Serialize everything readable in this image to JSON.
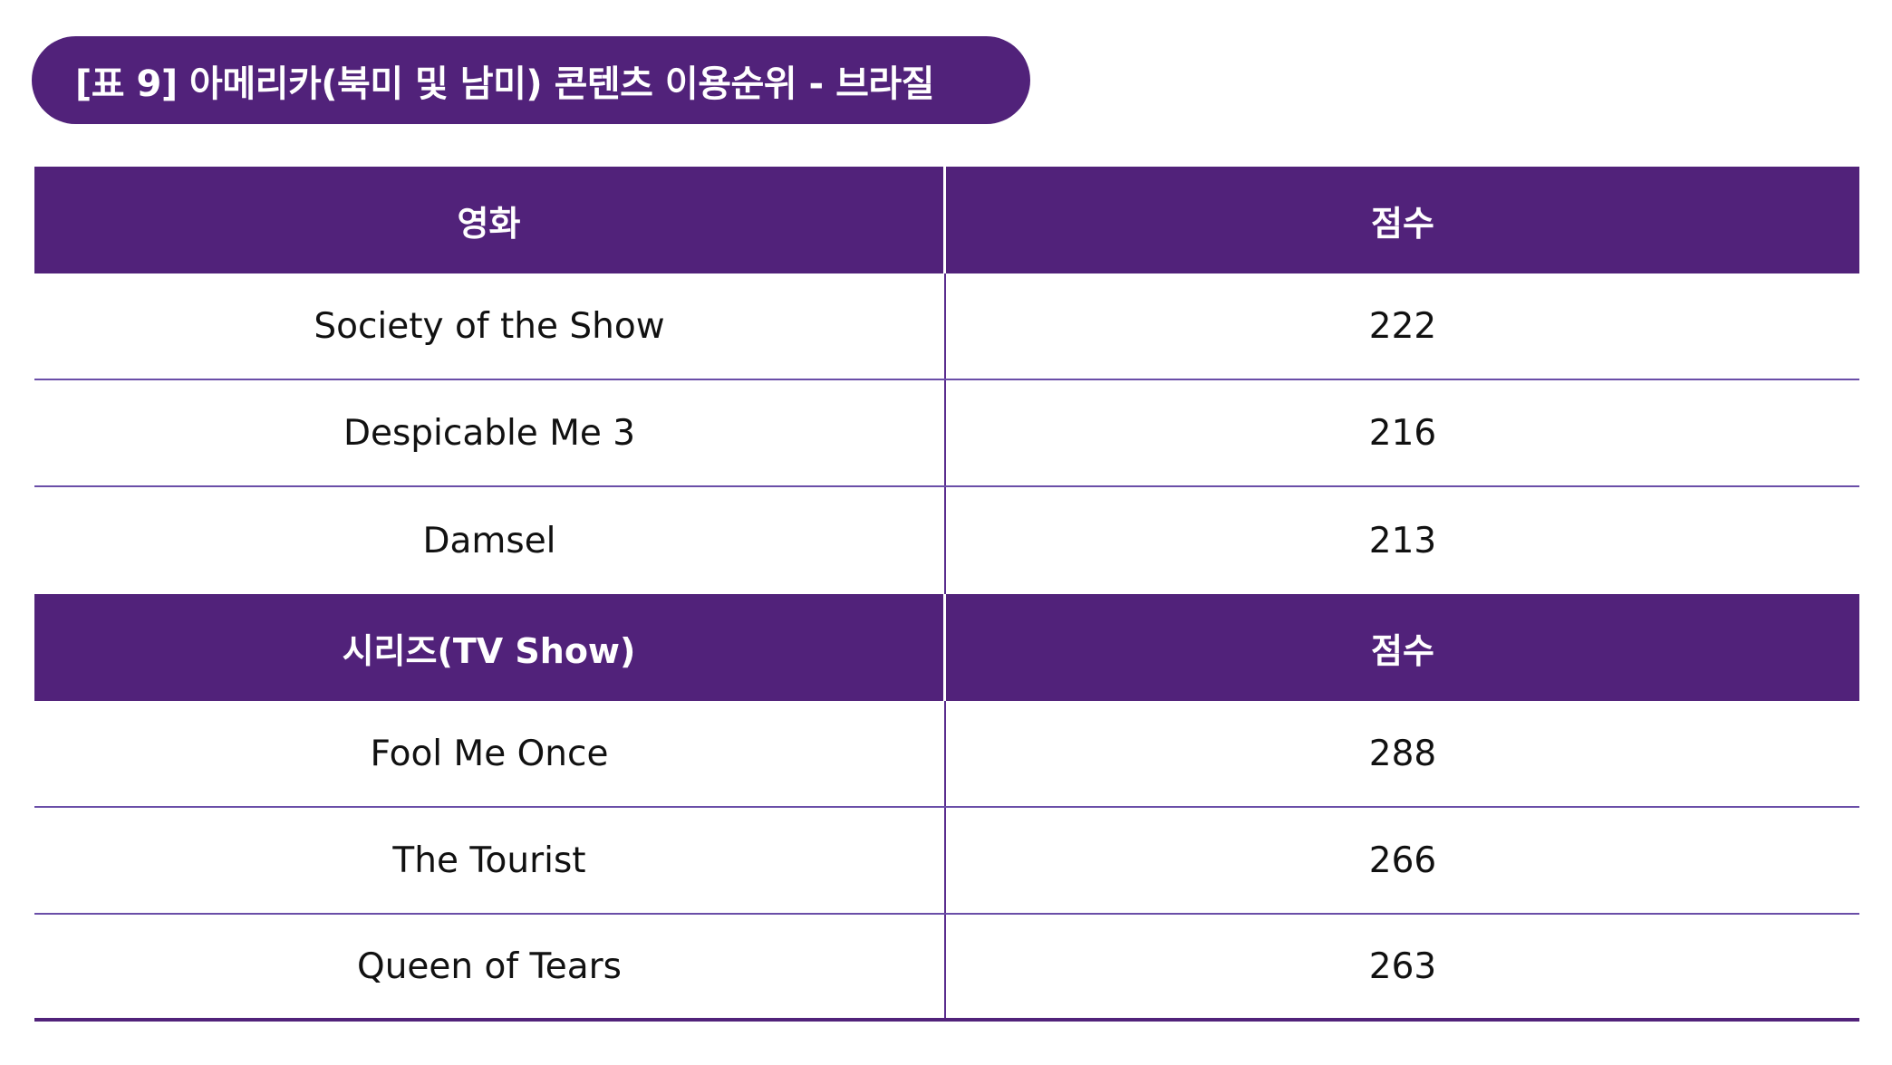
{
  "title": "[표 9] 아메리카(북미 및 남미) 콘텐츠 이용순위 - 브라질",
  "sections": [
    {
      "header": {
        "name": "영화",
        "score": "점수"
      },
      "rows": [
        {
          "name": "Society of the Show",
          "score": "222"
        },
        {
          "name": "Despicable Me 3",
          "score": "216"
        },
        {
          "name": "Damsel",
          "score": "213"
        }
      ]
    },
    {
      "header": {
        "name": "시리즈(TV Show)",
        "score": "점수"
      },
      "rows": [
        {
          "name": "Fool Me Once",
          "score": "288"
        },
        {
          "name": "The Tourist",
          "score": "266"
        },
        {
          "name": "Queen of Tears",
          "score": "263"
        }
      ]
    }
  ],
  "colors": {
    "header_bg": "#51227a",
    "header_text": "#ffffff",
    "body_text": "#111111",
    "rule": "#6a4ea8"
  }
}
